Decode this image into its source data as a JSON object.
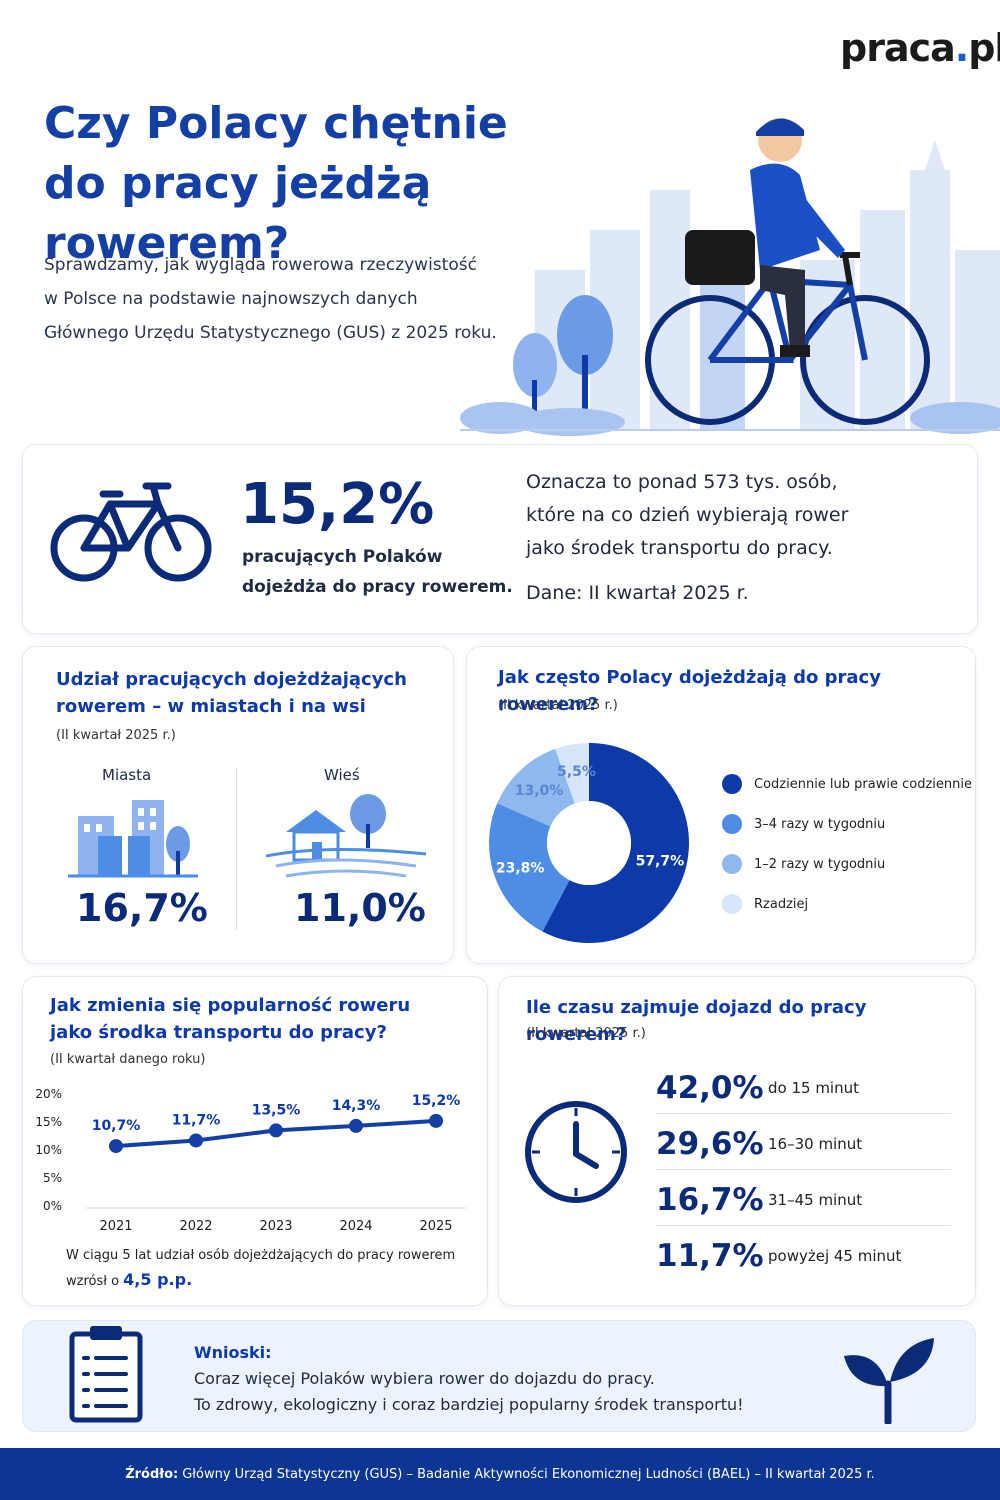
{
  "brand": {
    "name_main": "praca",
    "name_dot": ".",
    "name_tld": "pl"
  },
  "hero": {
    "title_line1": "Czy Polacy chętnie",
    "title_line2": "do pracy jeżdżą rowerem?",
    "desc_line1": "Sprawdzamy, jak wygląda rowerowa rzeczywistość",
    "desc_line2": "w Polsce na podstawie najnowszych danych",
    "desc_line3": "Głównego Urzędu Statystycznego (GUS) z 2025 roku."
  },
  "headline": {
    "value": "15,2%",
    "desc_line1": "pracujących Polaków",
    "desc_line2": "dojeżdża do pracy rowerem.",
    "note_line1": "Oznacza to ponad 573 tys. osób,",
    "note_line2": "które na co dzień wybierają rower",
    "note_line3": "jako środek transportu do pracy.",
    "note_date": "Dane: II kwartał 2025 r."
  },
  "city_village": {
    "title_line1": "Udział pracujących dojeżdżających",
    "title_line2": "rowerem – w miastach i na wsi",
    "subtitle": "(II kwartał 2025 r.)",
    "city_label": "Miasta",
    "city_value": "16,7%",
    "village_label": "Wieś",
    "village_value": "11,0%"
  },
  "frequency": {
    "title": "Jak często Polacy dojeżdżają do pracy rowerem?",
    "subtitle": "(II kwartał 2025 r.)",
    "legend": [
      {
        "label": "Codziennie lub prawie codziennie",
        "color": "#0d3aa8"
      },
      {
        "label": "3–4 razy w tygodniu",
        "color": "#4d8de6"
      },
      {
        "label": "1–2 razy w tygodniu",
        "color": "#8fb8ee"
      },
      {
        "label": "Rzadziej",
        "color": "#d6e5fa"
      }
    ]
  },
  "trend": {
    "title_line1": "Jak zmienia się popularność roweru",
    "title_line2": "jako środka transportu do pracy?",
    "subtitle": "(II kwartał danego roku)",
    "summary_line1": "W ciągu 5 lat udział osób dojeżdżających do pracy rowerem",
    "summary_prefix": "wzrósł o",
    "summary_value": "4,5 p.p."
  },
  "commute": {
    "title": "Ile czasu zajmuje dojazd do pracy rowerem?",
    "subtitle": "(II kwartał 2025 r.)",
    "rows": [
      {
        "pct": "42,0%",
        "label": "do 15 minut"
      },
      {
        "pct": "29,6%",
        "label": "16–30 minut"
      },
      {
        "pct": "16,7%",
        "label": "31–45 minut"
      },
      {
        "pct": "11,7%",
        "label": "powyżej 45 minut"
      }
    ]
  },
  "conclusions": {
    "title": "Wnioski:",
    "line1": "Coraz więcej Polaków wybiera rower do dojazdu do pracy.",
    "line2": "To zdrowy, ekologiczny i coraz bardziej popularny środek transportu!"
  },
  "footer": {
    "label": "Źródło:",
    "text": "Główny Urząd Statystyczny (GUS) – Badanie Aktywności Ekonomicznej Ludności (BAEL) – II kwartał 2025 r."
  },
  "colors": {
    "navy": "#0b2a78",
    "accent": "#0d3aa8",
    "footer": "#0d3594"
  },
  "chart_data": [
    {
      "type": "pie",
      "title": "Jak często Polacy dojeżdżają do pracy rowerem?",
      "categories": [
        "Codziennie lub prawie codziennie",
        "3–4 razy w tygodniu",
        "1–2 razy w tygodniu",
        "Rzadziej"
      ],
      "values": [
        57.7,
        23.8,
        13.0,
        5.5
      ],
      "labels": [
        "57,7%",
        "23,8%",
        "13,0%",
        "5,5%"
      ],
      "legend_position": "right",
      "colors": [
        "#0d3aa8",
        "#4d8de6",
        "#8fb8ee",
        "#d6e5fa"
      ]
    },
    {
      "type": "line",
      "title": "Jak zmienia się popularność roweru jako środka transportu do pracy?",
      "x": [
        "2021",
        "2022",
        "2023",
        "2024",
        "2025"
      ],
      "series": [
        {
          "values": [
            10.7,
            11.7,
            13.5,
            14.3,
            15.2
          ],
          "labels": [
            "10,7%",
            "11,7%",
            "13,5%",
            "14,3%",
            "15,2%"
          ]
        }
      ],
      "ylim": [
        0,
        20
      ],
      "yticks": [
        "20%",
        "15%",
        "10%",
        "5%",
        "0%"
      ],
      "grid": false
    }
  ]
}
